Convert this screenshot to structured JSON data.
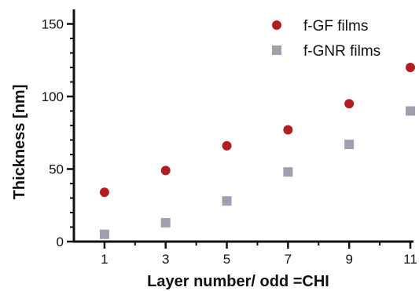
{
  "chart_data": {
    "type": "scatter",
    "title": "",
    "xlabel": "Layer number/ odd =CHI",
    "ylabel": "Thickness [nm]",
    "xlim": [
      0,
      11
    ],
    "ylim": [
      0,
      160
    ],
    "x_ticks": [
      1,
      3,
      5,
      7,
      9,
      11
    ],
    "y_ticks": [
      0,
      50,
      100,
      150
    ],
    "grid": false,
    "legend_position": "top-right",
    "series": [
      {
        "name": "f-GF films",
        "marker": "circle",
        "color": "#b01e23",
        "x": [
          1,
          3,
          5,
          7,
          9,
          11
        ],
        "y": [
          34,
          49,
          66,
          77,
          95,
          120
        ]
      },
      {
        "name": "f-GNR films",
        "marker": "square",
        "color": "#9ea0ad",
        "x": [
          1,
          3,
          5,
          7,
          9,
          11
        ],
        "y": [
          5,
          13,
          28,
          48,
          67,
          90
        ]
      }
    ]
  }
}
